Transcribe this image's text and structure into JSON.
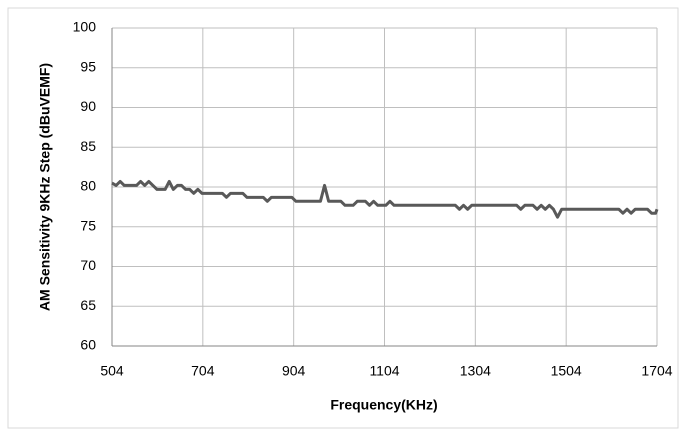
{
  "chart_data": {
    "type": "line",
    "x_label": "Frequency(KHz)",
    "y_label": "AM Sensitivity 9KHz Step (dBuVEMF)",
    "x": [
      504,
      513,
      522,
      531,
      558,
      567,
      576,
      585,
      594,
      603,
      621,
      630,
      639,
      648,
      657,
      666,
      675,
      684,
      693,
      702,
      747,
      756,
      765,
      792,
      801,
      837,
      846,
      855,
      900,
      909,
      963,
      972,
      981,
      1008,
      1017,
      1035,
      1044,
      1062,
      1071,
      1080,
      1089,
      1107,
      1116,
      1125,
      1260,
      1269,
      1278,
      1287,
      1296,
      1395,
      1404,
      1413,
      1431,
      1440,
      1449,
      1458,
      1467,
      1476,
      1485,
      1494,
      1539,
      1548,
      1620,
      1629,
      1638,
      1647,
      1656,
      1683,
      1692,
      1701,
      1704
    ],
    "series": [
      {
        "name": "AM Sensitivity",
        "color": "#595959",
        "values": [
          80.5,
          80.2,
          80.7,
          80.2,
          80.2,
          80.7,
          80.2,
          80.7,
          80.2,
          79.7,
          79.7,
          80.7,
          79.7,
          80.2,
          80.2,
          79.7,
          79.7,
          79.2,
          79.7,
          79.2,
          79.2,
          78.7,
          79.2,
          79.2,
          78.7,
          78.7,
          78.2,
          78.7,
          78.7,
          78.2,
          78.2,
          80.2,
          78.2,
          78.2,
          77.7,
          77.7,
          78.2,
          78.2,
          77.7,
          78.2,
          77.7,
          77.7,
          78.2,
          77.7,
          77.7,
          77.2,
          77.7,
          77.2,
          77.7,
          77.7,
          77.2,
          77.7,
          77.7,
          77.2,
          77.7,
          77.2,
          77.7,
          77.2,
          76.2,
          77.2,
          77.2,
          77.2,
          77.2,
          76.7,
          77.2,
          76.7,
          77.2,
          77.2,
          76.7,
          76.7,
          77.2
        ]
      }
    ],
    "xlim": [
      504,
      1704
    ],
    "xticks": [
      504,
      704,
      904,
      1104,
      1304,
      1504,
      1704
    ],
    "ylim": [
      60,
      100
    ],
    "yticks": [
      60,
      65,
      70,
      75,
      80,
      85,
      90,
      95,
      100
    ],
    "grid": true
  }
}
